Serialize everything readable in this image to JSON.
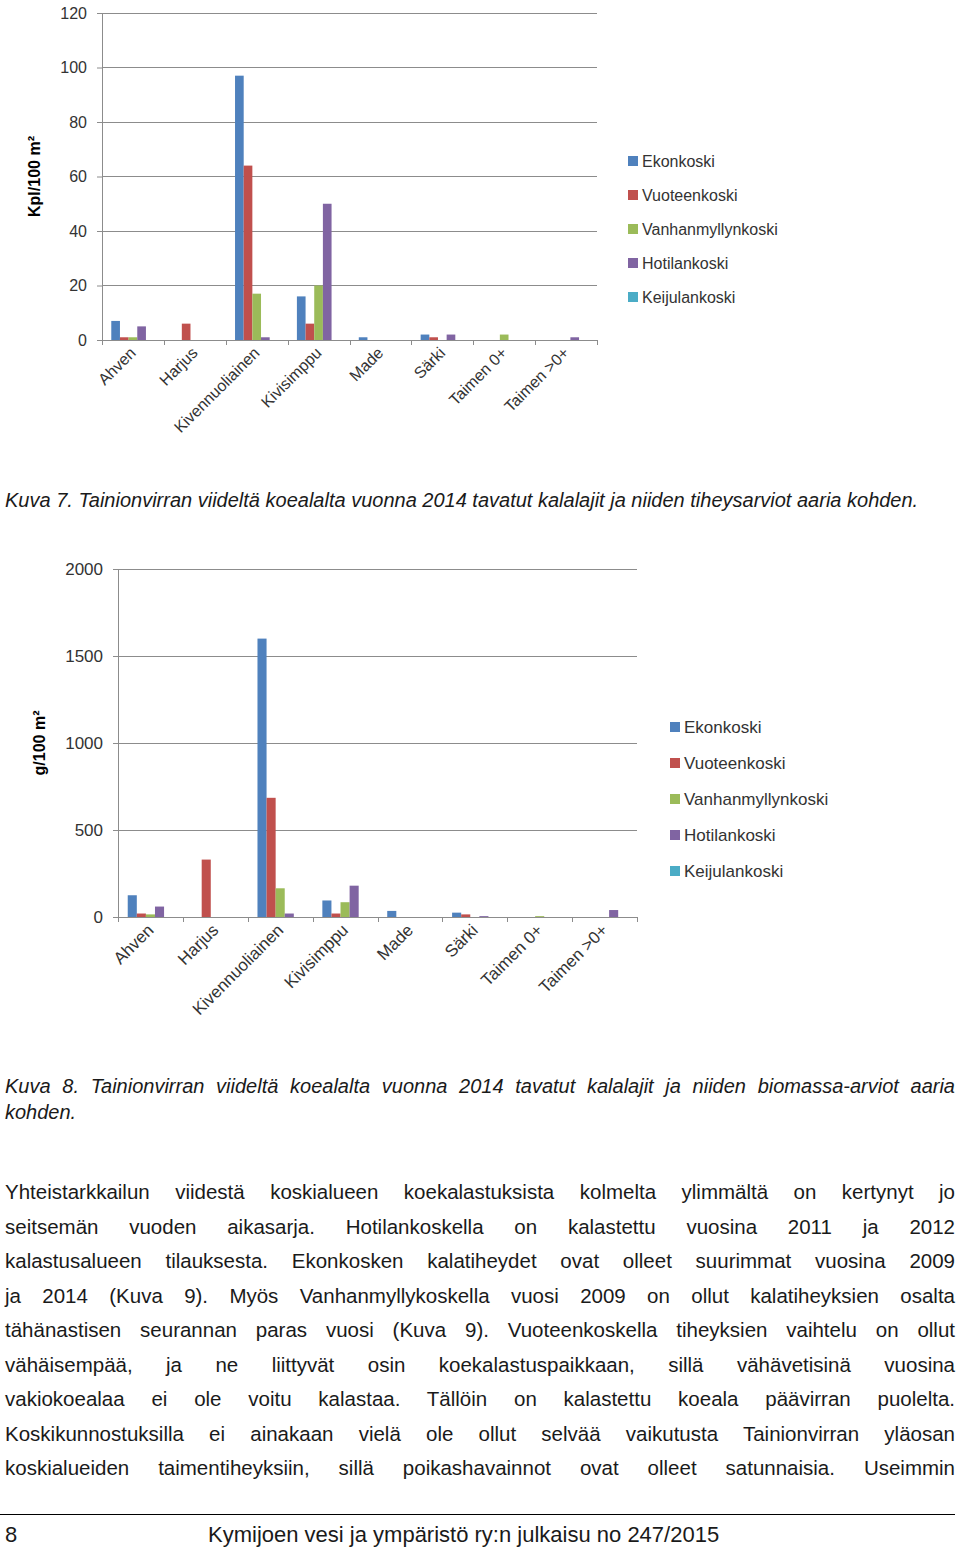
{
  "chart_data": [
    {
      "type": "bar",
      "y_label": "Kpl/100 m²",
      "categories": [
        "Ahven",
        "Harjus",
        "Kivennuoliainen",
        "Kivisimppu",
        "Made",
        "Särki",
        "Taimen 0+",
        "Taimen >0+"
      ],
      "series": [
        {
          "name": "Ekonkoski",
          "color": "#4f81bd",
          "values": [
            7,
            0,
            97,
            16,
            1,
            2,
            0,
            0
          ]
        },
        {
          "name": "Vuoteenkoski",
          "color": "#c0504d",
          "values": [
            1,
            6,
            64,
            6,
            0,
            1,
            0,
            0
          ]
        },
        {
          "name": "Vanhanmyllynkoski",
          "color": "#9bbb59",
          "values": [
            1,
            0,
            17,
            20,
            0,
            0,
            2,
            0
          ]
        },
        {
          "name": "Hotilankoski",
          "color": "#8064a2",
          "values": [
            5,
            0,
            1,
            50,
            0,
            2,
            0,
            1
          ]
        },
        {
          "name": "Keijulankoski",
          "color": "#4bacc6",
          "values": [
            0,
            0,
            0,
            0,
            0,
            0,
            0,
            0
          ]
        }
      ],
      "ylim": [
        0,
        120
      ],
      "yticks": [
        0,
        20,
        40,
        60,
        80,
        100,
        120
      ],
      "grid": true,
      "legend": "right"
    },
    {
      "type": "bar",
      "y_label": "g/100 m²",
      "categories": [
        "Ahven",
        "Harjus",
        "Kivennuoliainen",
        "Kivisimppu",
        "Made",
        "Särki",
        "Taimen 0+",
        "Taimen >0+"
      ],
      "series": [
        {
          "name": "Ekonkoski",
          "color": "#4f81bd",
          "values": [
            125,
            0,
            1600,
            95,
            35,
            25,
            0,
            0
          ]
        },
        {
          "name": "Vuoteenkoski",
          "color": "#c0504d",
          "values": [
            20,
            330,
            685,
            20,
            0,
            15,
            0,
            0
          ]
        },
        {
          "name": "Vanhanmyllynkoski",
          "color": "#9bbb59",
          "values": [
            15,
            0,
            165,
            85,
            0,
            0,
            5,
            0
          ]
        },
        {
          "name": "Hotilankoski",
          "color": "#8064a2",
          "values": [
            60,
            0,
            20,
            180,
            0,
            5,
            0,
            40
          ]
        },
        {
          "name": "Keijulankoski",
          "color": "#4bacc6",
          "values": [
            0,
            0,
            0,
            0,
            0,
            0,
            0,
            0
          ]
        }
      ],
      "ylim": [
        0,
        2000
      ],
      "yticks": [
        0,
        500,
        1000,
        1500,
        2000
      ],
      "grid": true,
      "legend": "right"
    }
  ],
  "document": {
    "captions": [
      "Kuva 7. Tainionvirran viideltä koealalta vuonna 2014 tavatut kalalajit ja niiden tiheysarviot aaria kohden.",
      "Kuva 8. Tainionvirran viideltä koealalta vuonna 2014 tavatut kalalajit ja niiden biomassa-arviot aaria kohden."
    ],
    "paragraph": [
      "Yhteistarkkailun viidestä koskialueen koekalastuksista kolmelta ylimmältä on kertynyt jo",
      "seitsemän vuoden aikasarja. Hotilankoskella on kalastettu vuosina 2011 ja 2012",
      "kalastusalueen tilauksesta. Ekonkosken kalatiheydet ovat olleet suurimmat vuosina 2009",
      "ja 2014 (Kuva 9). Myös Vanhanmyllykoskella vuosi 2009 on ollut kalatiheyksien osalta",
      "tähänastisen seurannan paras vuosi (Kuva 9). Vuoteenkoskella tiheyksien vaihtelu on ollut",
      "vähäisempää, ja ne liittyvät osin koekalastuspaikkaan, sillä vähävetisinä vuosina",
      "vakiokoealaa ei ole voitu kalastaa. Tällöin on kalastettu koeala päävirran puolelta.",
      "Koskikunnostuksilla ei ainakaan vielä ole ollut selvää vaikutusta Tainionvirran yläosan",
      "koskialueiden taimentiheyksiin, sillä poikashavainnot ovat olleet satunnaisia. Useimmin"
    ],
    "footer": {
      "page": 8,
      "text": "Kymijoen vesi ja ympäristö ry:n julkaisu no 247/2015"
    }
  }
}
